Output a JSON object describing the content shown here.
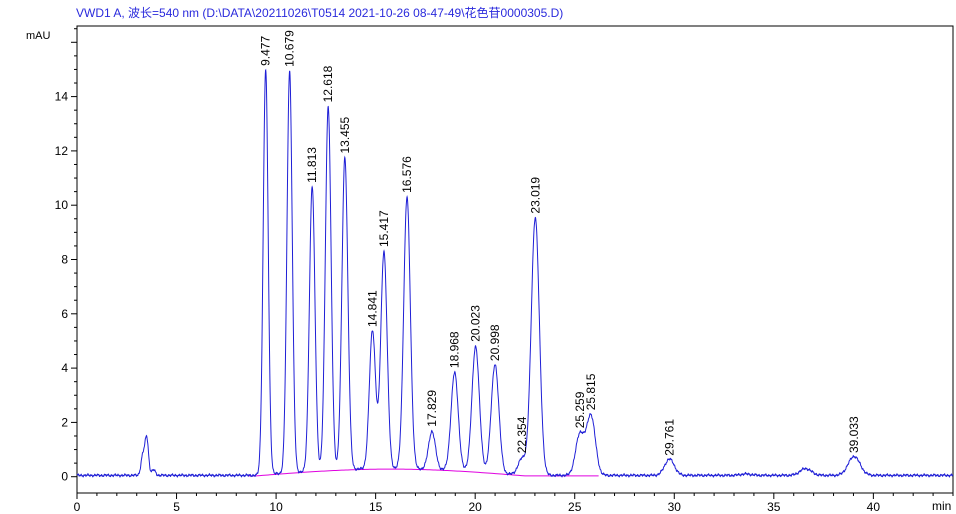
{
  "chart_data": {
    "type": "line",
    "title": "VWD1 A, 波长=540 nm (D:\\DATA\\20211026\\T0514 2021-10-26 08-47-49\\花色苷0000305.D)",
    "xlabel": "min",
    "ylabel": "mAU",
    "xlim": [
      0,
      44
    ],
    "ylim": [
      -0.6,
      16.6
    ],
    "x_ticks": [
      0,
      5,
      10,
      15,
      20,
      25,
      30,
      35,
      40
    ],
    "y_ticks": [
      0,
      2,
      4,
      6,
      8,
      10,
      12,
      14
    ],
    "grid": false,
    "legend": "none",
    "signal_color": "#1f1fd6",
    "baseline_color": "#e000e0",
    "peaks": [
      {
        "rt": 9.477,
        "label": "9.477",
        "height": 14.9
      },
      {
        "rt": 10.679,
        "label": "10.679",
        "height": 14.8
      },
      {
        "rt": 11.813,
        "label": "11.813",
        "height": 10.5
      },
      {
        "rt": 12.618,
        "label": "12.618",
        "height": 13.4
      },
      {
        "rt": 13.455,
        "label": "13.455",
        "height": 11.5
      },
      {
        "rt": 14.841,
        "label": "14.841",
        "height": 5.1
      },
      {
        "rt": 15.417,
        "label": "15.417",
        "height": 8.0
      },
      {
        "rt": 16.576,
        "label": "16.576",
        "height": 10.0
      },
      {
        "rt": 17.829,
        "label": "17.829",
        "height": 1.4
      },
      {
        "rt": 18.968,
        "label": "18.968",
        "height": 3.6
      },
      {
        "rt": 20.023,
        "label": "20.023",
        "height": 4.6
      },
      {
        "rt": 20.998,
        "label": "20.998",
        "height": 4.0
      },
      {
        "rt": 22.354,
        "label": "22.354",
        "height": 0.6
      },
      {
        "rt": 23.019,
        "label": "23.019",
        "height": 9.5
      },
      {
        "rt": 25.259,
        "label": "25.259",
        "height": 1.5
      },
      {
        "rt": 25.815,
        "label": "25.815",
        "height": 2.2
      },
      {
        "rt": 29.761,
        "label": "29.761",
        "height": 0.6
      },
      {
        "rt": 39.033,
        "label": "39.033",
        "height": 0.7
      }
    ],
    "minor_peaks": [
      {
        "rt": 3.3,
        "height": 0.7
      },
      {
        "rt": 3.5,
        "height": 1.4
      },
      {
        "rt": 3.85,
        "height": 0.2
      },
      {
        "rt": 36.6,
        "height": 0.25
      },
      {
        "rt": 33.6,
        "height": 0.05
      }
    ]
  }
}
